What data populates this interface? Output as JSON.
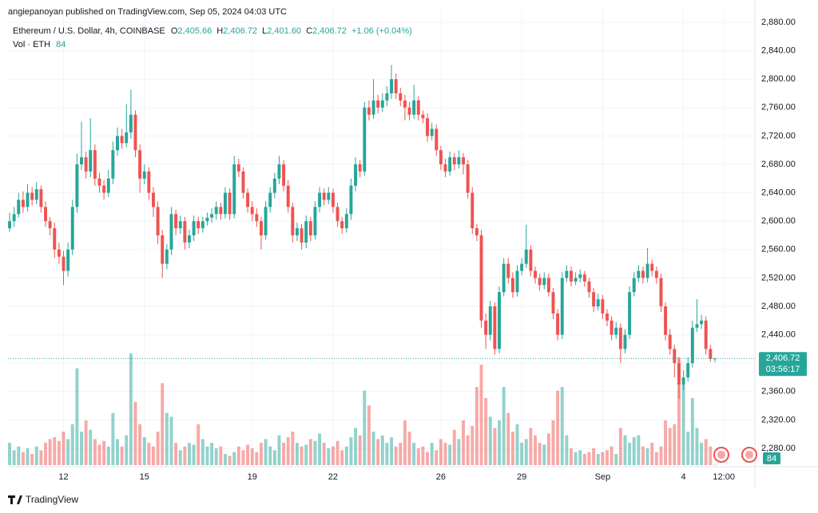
{
  "header": {
    "publisher": "angiepanoyan published on TradingView.com, Sep 05, 2024 04:03 UTC",
    "symbol": "Ethereum / U.S. Dollar, 4h, COINBASE",
    "o_label": "O",
    "o_value": "2,405.66",
    "h_label": "H",
    "h_value": "2,406.72",
    "l_label": "L",
    "l_value": "2,401.60",
    "c_label": "C",
    "c_value": "2,406.72",
    "change": "+1.06 (+0.04%)",
    "vol_label": "Vol · ETH",
    "countdown": "03:56:17"
  },
  "footer": {
    "brand": "TradingView"
  },
  "chart_data": {
    "type": "candlestick",
    "up_color": "#26a69a",
    "down_color": "#ef5350",
    "ylim": [
      2256.4,
      2902.5
    ],
    "xlim": [
      -0.36,
      165.9
    ],
    "grid": true,
    "yticks": [
      {
        "value": 2880,
        "label": "2,880.00"
      },
      {
        "value": 2840,
        "label": "2,840.00"
      },
      {
        "value": 2800,
        "label": "2,800.00"
      },
      {
        "value": 2760,
        "label": "2,760.00"
      },
      {
        "value": 2720,
        "label": "2,720.00"
      },
      {
        "value": 2680,
        "label": "2,680.00"
      },
      {
        "value": 2640,
        "label": "2,640.00"
      },
      {
        "value": 2600,
        "label": "2,600.00"
      },
      {
        "value": 2560,
        "label": "2,560.00"
      },
      {
        "value": 2520,
        "label": "2,520.00"
      },
      {
        "value": 2480,
        "label": "2,480.00"
      },
      {
        "value": 2440,
        "label": "2,440.00"
      },
      {
        "value": 2400,
        "label": "2,400.00"
      },
      {
        "value": 2360,
        "label": "2,360.00"
      },
      {
        "value": 2320,
        "label": "2,320.00"
      },
      {
        "value": 2280,
        "label": "2,280.00"
      }
    ],
    "xticks": [
      {
        "value": 12,
        "label": "12"
      },
      {
        "value": 30,
        "label": "15"
      },
      {
        "value": 54,
        "label": "19"
      },
      {
        "value": 72,
        "label": "22"
      },
      {
        "value": 96,
        "label": "26"
      },
      {
        "value": 114,
        "label": "29"
      },
      {
        "value": 132,
        "label": "Sep"
      },
      {
        "value": 150,
        "label": "4"
      },
      {
        "value": 159,
        "label": "12:00"
      }
    ],
    "ohlc": [
      [
        2590,
        2612,
        2585,
        2600
      ],
      [
        2600,
        2620,
        2592,
        2610
      ],
      [
        2610,
        2640,
        2605,
        2630
      ],
      [
        2630,
        2642,
        2612,
        2620
      ],
      [
        2620,
        2652,
        2614,
        2640
      ],
      [
        2640,
        2648,
        2622,
        2630
      ],
      [
        2630,
        2655,
        2624,
        2645
      ],
      [
        2645,
        2650,
        2612,
        2620
      ],
      [
        2620,
        2628,
        2592,
        2600
      ],
      [
        2600,
        2606,
        2580,
        2590
      ],
      [
        2590,
        2598,
        2548,
        2560
      ],
      [
        2560,
        2570,
        2540,
        2550
      ],
      [
        2550,
        2558,
        2510,
        2530
      ],
      [
        2530,
        2570,
        2522,
        2560
      ],
      [
        2560,
        2630,
        2552,
        2620
      ],
      [
        2620,
        2695,
        2612,
        2680
      ],
      [
        2680,
        2740,
        2672,
        2690
      ],
      [
        2690,
        2698,
        2660,
        2670
      ],
      [
        2670,
        2745,
        2662,
        2700
      ],
      [
        2700,
        2708,
        2650,
        2660
      ],
      [
        2660,
        2668,
        2640,
        2650
      ],
      [
        2650,
        2658,
        2630,
        2640
      ],
      [
        2640,
        2672,
        2634,
        2660
      ],
      [
        2660,
        2712,
        2652,
        2700
      ],
      [
        2700,
        2732,
        2692,
        2720
      ],
      [
        2720,
        2730,
        2702,
        2710
      ],
      [
        2710,
        2765,
        2704,
        2725
      ],
      [
        2725,
        2785,
        2716,
        2750
      ],
      [
        2750,
        2756,
        2690,
        2700
      ],
      [
        2700,
        2708,
        2640,
        2660
      ],
      [
        2660,
        2680,
        2652,
        2670
      ],
      [
        2670,
        2676,
        2630,
        2640
      ],
      [
        2640,
        2648,
        2606,
        2620
      ],
      [
        2620,
        2628,
        2568,
        2580
      ],
      [
        2580,
        2588,
        2520,
        2540
      ],
      [
        2540,
        2568,
        2532,
        2560
      ],
      [
        2560,
        2620,
        2552,
        2610
      ],
      [
        2610,
        2616,
        2580,
        2590
      ],
      [
        2590,
        2608,
        2582,
        2600
      ],
      [
        2600,
        2606,
        2560,
        2570
      ],
      [
        2570,
        2588,
        2562,
        2580
      ],
      [
        2580,
        2608,
        2572,
        2600
      ],
      [
        2600,
        2606,
        2582,
        2590
      ],
      [
        2590,
        2606,
        2584,
        2600
      ],
      [
        2600,
        2612,
        2594,
        2605
      ],
      [
        2605,
        2618,
        2598,
        2610
      ],
      [
        2610,
        2628,
        2602,
        2620
      ],
      [
        2620,
        2626,
        2602,
        2610
      ],
      [
        2610,
        2648,
        2604,
        2640
      ],
      [
        2640,
        2646,
        2602,
        2610
      ],
      [
        2610,
        2692,
        2604,
        2680
      ],
      [
        2680,
        2688,
        2662,
        2670
      ],
      [
        2670,
        2676,
        2632,
        2640
      ],
      [
        2640,
        2646,
        2612,
        2620
      ],
      [
        2620,
        2628,
        2600,
        2610
      ],
      [
        2610,
        2618,
        2592,
        2600
      ],
      [
        2600,
        2606,
        2560,
        2580
      ],
      [
        2580,
        2628,
        2574,
        2620
      ],
      [
        2620,
        2648,
        2612,
        2640
      ],
      [
        2640,
        2668,
        2632,
        2660
      ],
      [
        2660,
        2692,
        2652,
        2680
      ],
      [
        2680,
        2686,
        2642,
        2650
      ],
      [
        2650,
        2658,
        2612,
        2620
      ],
      [
        2620,
        2626,
        2570,
        2580
      ],
      [
        2580,
        2598,
        2572,
        2590
      ],
      [
        2590,
        2596,
        2560,
        2570
      ],
      [
        2570,
        2608,
        2562,
        2600
      ],
      [
        2600,
        2606,
        2572,
        2580
      ],
      [
        2580,
        2628,
        2574,
        2620
      ],
      [
        2620,
        2648,
        2612,
        2640
      ],
      [
        2640,
        2646,
        2622,
        2630
      ],
      [
        2630,
        2648,
        2624,
        2640
      ],
      [
        2640,
        2646,
        2612,
        2620
      ],
      [
        2620,
        2626,
        2592,
        2600
      ],
      [
        2600,
        2606,
        2582,
        2590
      ],
      [
        2590,
        2618,
        2584,
        2610
      ],
      [
        2610,
        2660,
        2602,
        2650
      ],
      [
        2650,
        2690,
        2642,
        2680
      ],
      [
        2680,
        2686,
        2662,
        2670
      ],
      [
        2670,
        2768,
        2664,
        2760
      ],
      [
        2760,
        2770,
        2742,
        2750
      ],
      [
        2750,
        2800,
        2744,
        2770
      ],
      [
        2770,
        2778,
        2752,
        2760
      ],
      [
        2760,
        2780,
        2754,
        2770
      ],
      [
        2770,
        2790,
        2762,
        2780
      ],
      [
        2780,
        2820,
        2772,
        2800
      ],
      [
        2800,
        2808,
        2772,
        2780
      ],
      [
        2780,
        2788,
        2762,
        2770
      ],
      [
        2770,
        2778,
        2742,
        2760
      ],
      [
        2760,
        2768,
        2742,
        2750
      ],
      [
        2750,
        2792,
        2744,
        2770
      ],
      [
        2770,
        2776,
        2742,
        2750
      ],
      [
        2750,
        2756,
        2738,
        2745
      ],
      [
        2745,
        2752,
        2712,
        2720
      ],
      [
        2720,
        2738,
        2714,
        2730
      ],
      [
        2730,
        2736,
        2692,
        2700
      ],
      [
        2700,
        2706,
        2672,
        2680
      ],
      [
        2680,
        2688,
        2662,
        2670
      ],
      [
        2670,
        2698,
        2664,
        2690
      ],
      [
        2690,
        2696,
        2672,
        2680
      ],
      [
        2680,
        2700,
        2674,
        2690
      ],
      [
        2690,
        2696,
        2666,
        2680
      ],
      [
        2680,
        2686,
        2632,
        2640
      ],
      [
        2640,
        2648,
        2582,
        2590
      ],
      [
        2590,
        2596,
        2572,
        2580
      ],
      [
        2580,
        2588,
        2450,
        2460
      ],
      [
        2460,
        2470,
        2420,
        2440
      ],
      [
        2440,
        2488,
        2432,
        2480
      ],
      [
        2480,
        2486,
        2412,
        2420
      ],
      [
        2420,
        2508,
        2414,
        2500
      ],
      [
        2500,
        2548,
        2494,
        2540
      ],
      [
        2540,
        2548,
        2512,
        2520
      ],
      [
        2520,
        2528,
        2492,
        2500
      ],
      [
        2500,
        2538,
        2494,
        2530
      ],
      [
        2530,
        2548,
        2524,
        2540
      ],
      [
        2540,
        2595,
        2534,
        2560
      ],
      [
        2560,
        2566,
        2522,
        2530
      ],
      [
        2530,
        2536,
        2512,
        2520
      ],
      [
        2520,
        2526,
        2502,
        2510
      ],
      [
        2510,
        2528,
        2504,
        2520
      ],
      [
        2520,
        2526,
        2494,
        2500
      ],
      [
        2500,
        2506,
        2462,
        2470
      ],
      [
        2470,
        2476,
        2432,
        2440
      ],
      [
        2440,
        2528,
        2434,
        2520
      ],
      [
        2520,
        2538,
        2514,
        2530
      ],
      [
        2530,
        2536,
        2508,
        2515
      ],
      [
        2515,
        2528,
        2510,
        2520
      ],
      [
        2520,
        2532,
        2514,
        2525
      ],
      [
        2525,
        2530,
        2508,
        2515
      ],
      [
        2515,
        2520,
        2492,
        2500
      ],
      [
        2500,
        2506,
        2472,
        2480
      ],
      [
        2480,
        2498,
        2474,
        2490
      ],
      [
        2490,
        2496,
        2462,
        2470
      ],
      [
        2470,
        2476,
        2452,
        2460
      ],
      [
        2460,
        2466,
        2432,
        2440
      ],
      [
        2440,
        2458,
        2434,
        2450
      ],
      [
        2450,
        2456,
        2400,
        2420
      ],
      [
        2420,
        2448,
        2414,
        2440
      ],
      [
        2440,
        2508,
        2434,
        2500
      ],
      [
        2500,
        2528,
        2494,
        2520
      ],
      [
        2520,
        2538,
        2514,
        2530
      ],
      [
        2530,
        2536,
        2512,
        2520
      ],
      [
        2520,
        2562,
        2514,
        2540
      ],
      [
        2540,
        2546,
        2522,
        2530
      ],
      [
        2530,
        2536,
        2512,
        2520
      ],
      [
        2520,
        2526,
        2472,
        2480
      ],
      [
        2480,
        2486,
        2432,
        2440
      ],
      [
        2440,
        2448,
        2412,
        2420
      ],
      [
        2420,
        2426,
        2380,
        2400
      ],
      [
        2400,
        2406,
        2350,
        2370
      ],
      [
        2370,
        2390,
        2362,
        2380
      ],
      [
        2380,
        2408,
        2374,
        2400
      ],
      [
        2400,
        2460,
        2394,
        2450
      ],
      [
        2450,
        2490,
        2444,
        2455
      ],
      [
        2455,
        2468,
        2448,
        2460
      ],
      [
        2460,
        2466,
        2412,
        2420
      ],
      [
        2420,
        2426,
        2402,
        2406
      ],
      [
        2405.66,
        2406.72,
        2401.6,
        2406.72
      ]
    ],
    "volume": [
      6000,
      4000,
      5000,
      3500,
      4500,
      3000,
      5000,
      4000,
      6000,
      7000,
      7500,
      6500,
      9000,
      7000,
      11000,
      26000,
      9000,
      12000,
      9500,
      7000,
      5500,
      6500,
      5000,
      14000,
      7000,
      5000,
      8000,
      30000,
      17000,
      11000,
      7500,
      6000,
      5000,
      9000,
      22000,
      14000,
      13000,
      6000,
      4000,
      5000,
      6000,
      5500,
      11000,
      7000,
      5000,
      6000,
      4500,
      5000,
      3000,
      2500,
      3500,
      5000,
      4000,
      5500,
      4500,
      3500,
      6000,
      7000,
      5000,
      4000,
      8000,
      6000,
      7500,
      9000,
      6000,
      5000,
      5500,
      7000,
      6500,
      8500,
      6000,
      4500,
      5000,
      6500,
      4000,
      5000,
      7500,
      10000,
      8000,
      20000,
      16000,
      9000,
      7000,
      8000,
      6000,
      7500,
      5000,
      6000,
      12000,
      9000,
      6000,
      4500,
      5000,
      3500,
      6000,
      4000,
      7000,
      6000,
      5500,
      9500,
      7000,
      12000,
      8000,
      10500,
      21000,
      27000,
      18000,
      13000,
      10000,
      12000,
      21000,
      14000,
      9000,
      11000,
      6000,
      7000,
      10000,
      8000,
      6000,
      5500,
      8500,
      12000,
      20000,
      21000,
      8000,
      4500,
      3500,
      4000,
      3000,
      3500,
      4500,
      3000,
      3500,
      4000,
      5000,
      3000,
      10000,
      8000,
      6000,
      7500,
      8000,
      5000,
      4500,
      6000,
      3500,
      5000,
      12000,
      10000,
      11000,
      29000,
      22000,
      9000,
      18000,
      10000,
      6000,
      7000,
      5000,
      84
    ]
  }
}
